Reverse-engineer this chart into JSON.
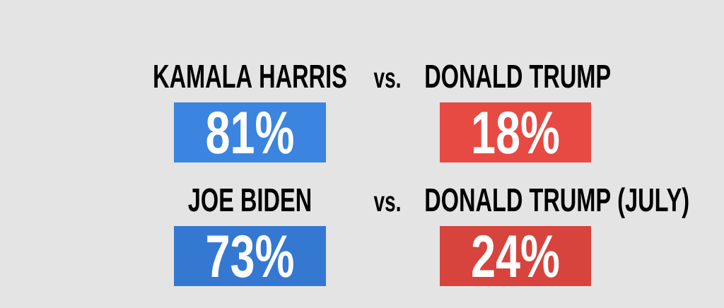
{
  "chart_data": {
    "type": "other",
    "categories": [
      "KAMALA HARRIS",
      "DONALD TRUMP",
      "JOE BIDEN",
      "DONALD TRUMP (JULY)"
    ],
    "values": [
      81,
      18,
      73,
      24
    ],
    "data_labels": true,
    "ylabel": "%",
    "colors": [
      "#3b84e0",
      "#e74a43",
      "#3578d2",
      "#d7443d"
    ],
    "annotations": [
      "vs.",
      "vs."
    ]
  }
}
